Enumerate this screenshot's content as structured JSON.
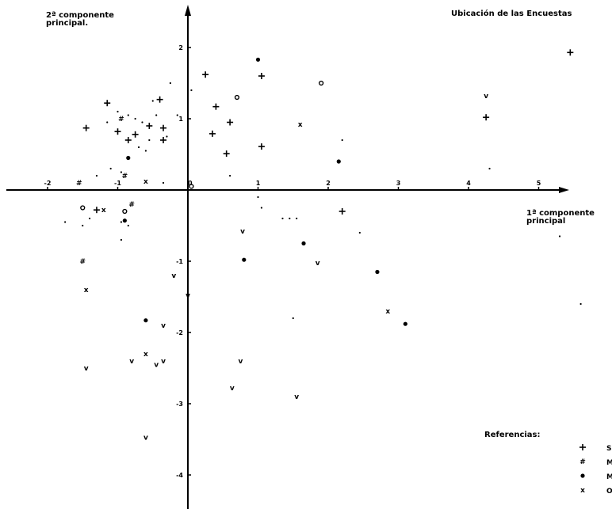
{
  "chart_data": {
    "type": "scatter",
    "title": "Ubicación de las Encuestas",
    "xlabel": "1ª componente principal",
    "ylabel": "2ª componente principal.",
    "xlim": [
      -2.5,
      5.9
    ],
    "ylim": [
      -4.4,
      2.6
    ],
    "x_ticks": [
      -2,
      -1,
      0,
      1,
      2,
      3,
      4,
      5
    ],
    "x_tick_labels": [
      "-2",
      "-1",
      "0",
      "1",
      "2",
      "3",
      "4",
      "5"
    ],
    "y_ticks": [
      -4,
      -3,
      -2,
      -1,
      1,
      2
    ],
    "y_tick_labels": [
      "-4",
      "-3",
      "-2",
      "-1",
      "1",
      "2"
    ],
    "legend_title": "Referencias:",
    "legend_position": "bottom-right",
    "legend_entries": [
      {
        "symbol": "+",
        "label": "S"
      },
      {
        "symbol": "#",
        "label": "M"
      },
      {
        "symbol": "●",
        "label": "M"
      },
      {
        "symbol": "x",
        "label": "O"
      }
    ],
    "series": [
      {
        "symbol": "+",
        "points": [
          [
            -1.45,
            0.87
          ],
          [
            -1.15,
            1.22
          ],
          [
            -1.0,
            0.82
          ],
          [
            -0.85,
            0.7
          ],
          [
            -0.75,
            0.78
          ],
          [
            -0.55,
            0.9
          ],
          [
            -0.4,
            1.27
          ],
          [
            -0.35,
            0.87
          ],
          [
            -0.35,
            0.7
          ],
          [
            0.25,
            1.62
          ],
          [
            0.4,
            1.17
          ],
          [
            0.35,
            0.79
          ],
          [
            0.55,
            0.51
          ],
          [
            0.6,
            0.95
          ],
          [
            1.05,
            0.61
          ],
          [
            1.05,
            1.6
          ],
          [
            5.45,
            1.93
          ],
          [
            4.25,
            1.02
          ],
          [
            2.2,
            -0.3
          ],
          [
            -1.3,
            -0.28
          ]
        ]
      },
      {
        "symbol": "v",
        "points": [
          [
            4.25,
            1.32
          ],
          [
            0.78,
            -0.58
          ],
          [
            1.85,
            -1.02
          ],
          [
            -0.2,
            -1.2
          ],
          [
            0.0,
            -1.48
          ],
          [
            -0.35,
            -1.9
          ],
          [
            -1.45,
            -2.5
          ],
          [
            -0.8,
            -2.4
          ],
          [
            -0.45,
            -2.45
          ],
          [
            -0.35,
            -2.4
          ],
          [
            0.75,
            -2.4
          ],
          [
            0.63,
            -2.78
          ],
          [
            1.55,
            -2.9
          ],
          [
            -0.6,
            -3.47
          ]
        ]
      },
      {
        "symbol": "●",
        "points": [
          [
            1.0,
            1.83
          ],
          [
            0.8,
            -0.98
          ],
          [
            1.65,
            -0.75
          ],
          [
            2.7,
            -1.15
          ],
          [
            3.1,
            -1.88
          ],
          [
            -0.6,
            -1.83
          ],
          [
            -0.9,
            -0.43
          ],
          [
            2.15,
            0.4
          ],
          [
            -0.85,
            0.45
          ]
        ]
      },
      {
        "symbol": "o",
        "points": [
          [
            1.9,
            1.5
          ],
          [
            0.7,
            1.3
          ],
          [
            -1.5,
            -0.25
          ],
          [
            0.05,
            0.05
          ],
          [
            -0.9,
            -0.3
          ]
        ]
      },
      {
        "symbol": "x",
        "points": [
          [
            1.6,
            0.92
          ],
          [
            2.85,
            -1.7
          ],
          [
            -1.45,
            -1.4
          ],
          [
            -0.6,
            -2.3
          ],
          [
            -1.2,
            -0.28
          ],
          [
            -0.6,
            0.12
          ]
        ]
      },
      {
        "symbol": "#",
        "points": [
          [
            -1.5,
            -1.0
          ],
          [
            -0.8,
            -0.2
          ],
          [
            -0.9,
            0.2
          ],
          [
            -1.55,
            0.1
          ],
          [
            -0.95,
            1.0
          ]
        ]
      },
      {
        "symbol": "·",
        "points": [
          [
            -1.3,
            0.2
          ],
          [
            -1.1,
            0.3
          ],
          [
            -0.95,
            0.25
          ],
          [
            -1.15,
            0.95
          ],
          [
            -1.0,
            1.1
          ],
          [
            -0.85,
            1.05
          ],
          [
            -0.75,
            1.0
          ],
          [
            -0.65,
            0.95
          ],
          [
            -0.7,
            0.6
          ],
          [
            -0.6,
            0.55
          ],
          [
            -0.55,
            0.7
          ],
          [
            -0.45,
            1.05
          ],
          [
            -0.3,
            0.75
          ],
          [
            -0.25,
            1.5
          ],
          [
            -0.15,
            1.05
          ],
          [
            0.05,
            1.4
          ],
          [
            0.6,
            0.2
          ],
          [
            1.0,
            -0.1
          ],
          [
            1.05,
            -0.25
          ],
          [
            1.35,
            -0.4
          ],
          [
            1.45,
            -0.4
          ],
          [
            1.55,
            -0.4
          ],
          [
            2.45,
            -0.6
          ],
          [
            -1.4,
            -0.4
          ],
          [
            -1.5,
            -0.5
          ],
          [
            -1.75,
            -0.45
          ],
          [
            -0.95,
            -0.45
          ],
          [
            -0.95,
            -0.7
          ],
          [
            -0.85,
            -0.5
          ],
          [
            -0.35,
            0.1
          ],
          [
            1.5,
            -1.8
          ],
          [
            4.3,
            0.3
          ],
          [
            5.6,
            -1.6
          ],
          [
            5.3,
            -0.65
          ],
          [
            2.2,
            0.7
          ],
          [
            -0.5,
            1.25
          ]
        ]
      }
    ]
  }
}
